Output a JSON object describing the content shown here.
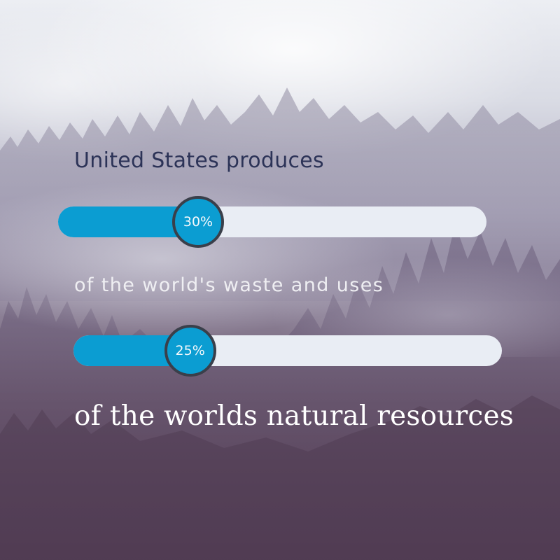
{
  "headline": "United States produces",
  "middle_text": "of the world's waste and uses",
  "footer_text": "of the worlds natural resources",
  "stats": [
    {
      "label": "30%",
      "value": 30
    },
    {
      "label": "25%",
      "value": 25
    }
  ],
  "colors": {
    "bar_fill": "#0b9dd2",
    "bar_track": "#e9edf4",
    "knob_border": "#3a3f4a",
    "headline": "#2c3357"
  }
}
